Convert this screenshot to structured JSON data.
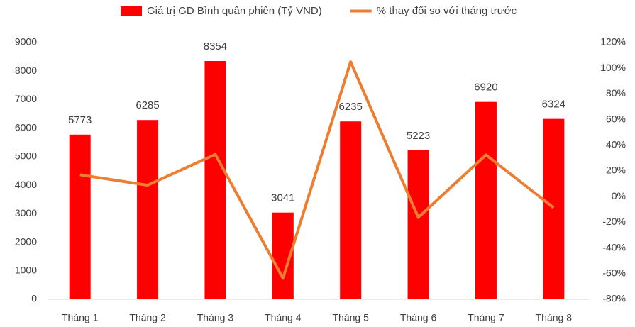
{
  "chart_data": {
    "type": "bar_line",
    "categories": [
      "Tháng 1",
      "Tháng 2",
      "Tháng 3",
      "Tháng 4",
      "Tháng 5",
      "Tháng 6",
      "Tháng 7",
      "Tháng 8"
    ],
    "series": [
      {
        "name": "Giá trị GD Bình quân phiên (Tỷ VND)",
        "type": "bar",
        "color": "#ff0000",
        "axis": "y",
        "values": [
          5773,
          6285,
          8354,
          3041,
          6235,
          5223,
          6920,
          6324
        ]
      },
      {
        "name": "% thay đổi so với tháng trước",
        "type": "line",
        "color": "#ed7d31",
        "axis": "y2",
        "values": [
          17,
          8.9,
          32.9,
          -63.6,
          105,
          -16.2,
          32.5,
          -8.6
        ]
      }
    ],
    "ylim": [
      0,
      9000
    ],
    "yticks": [
      0,
      1000,
      2000,
      3000,
      4000,
      5000,
      6000,
      7000,
      8000,
      9000
    ],
    "y2lim": [
      -80,
      120
    ],
    "y2ticks": [
      {
        "value": -80,
        "label": "-80%"
      },
      {
        "value": -60,
        "label": "-60%"
      },
      {
        "value": -40,
        "label": "-40%"
      },
      {
        "value": -20,
        "label": "-20%"
      },
      {
        "value": 0,
        "label": "0%"
      },
      {
        "value": 20,
        "label": "20%"
      },
      {
        "value": 40,
        "label": "40%"
      },
      {
        "value": 60,
        "label": "60%"
      },
      {
        "value": 80,
        "label": "80%"
      },
      {
        "value": 100,
        "label": "100%"
      },
      {
        "value": 120,
        "label": "120%"
      }
    ],
    "legend": "top"
  }
}
